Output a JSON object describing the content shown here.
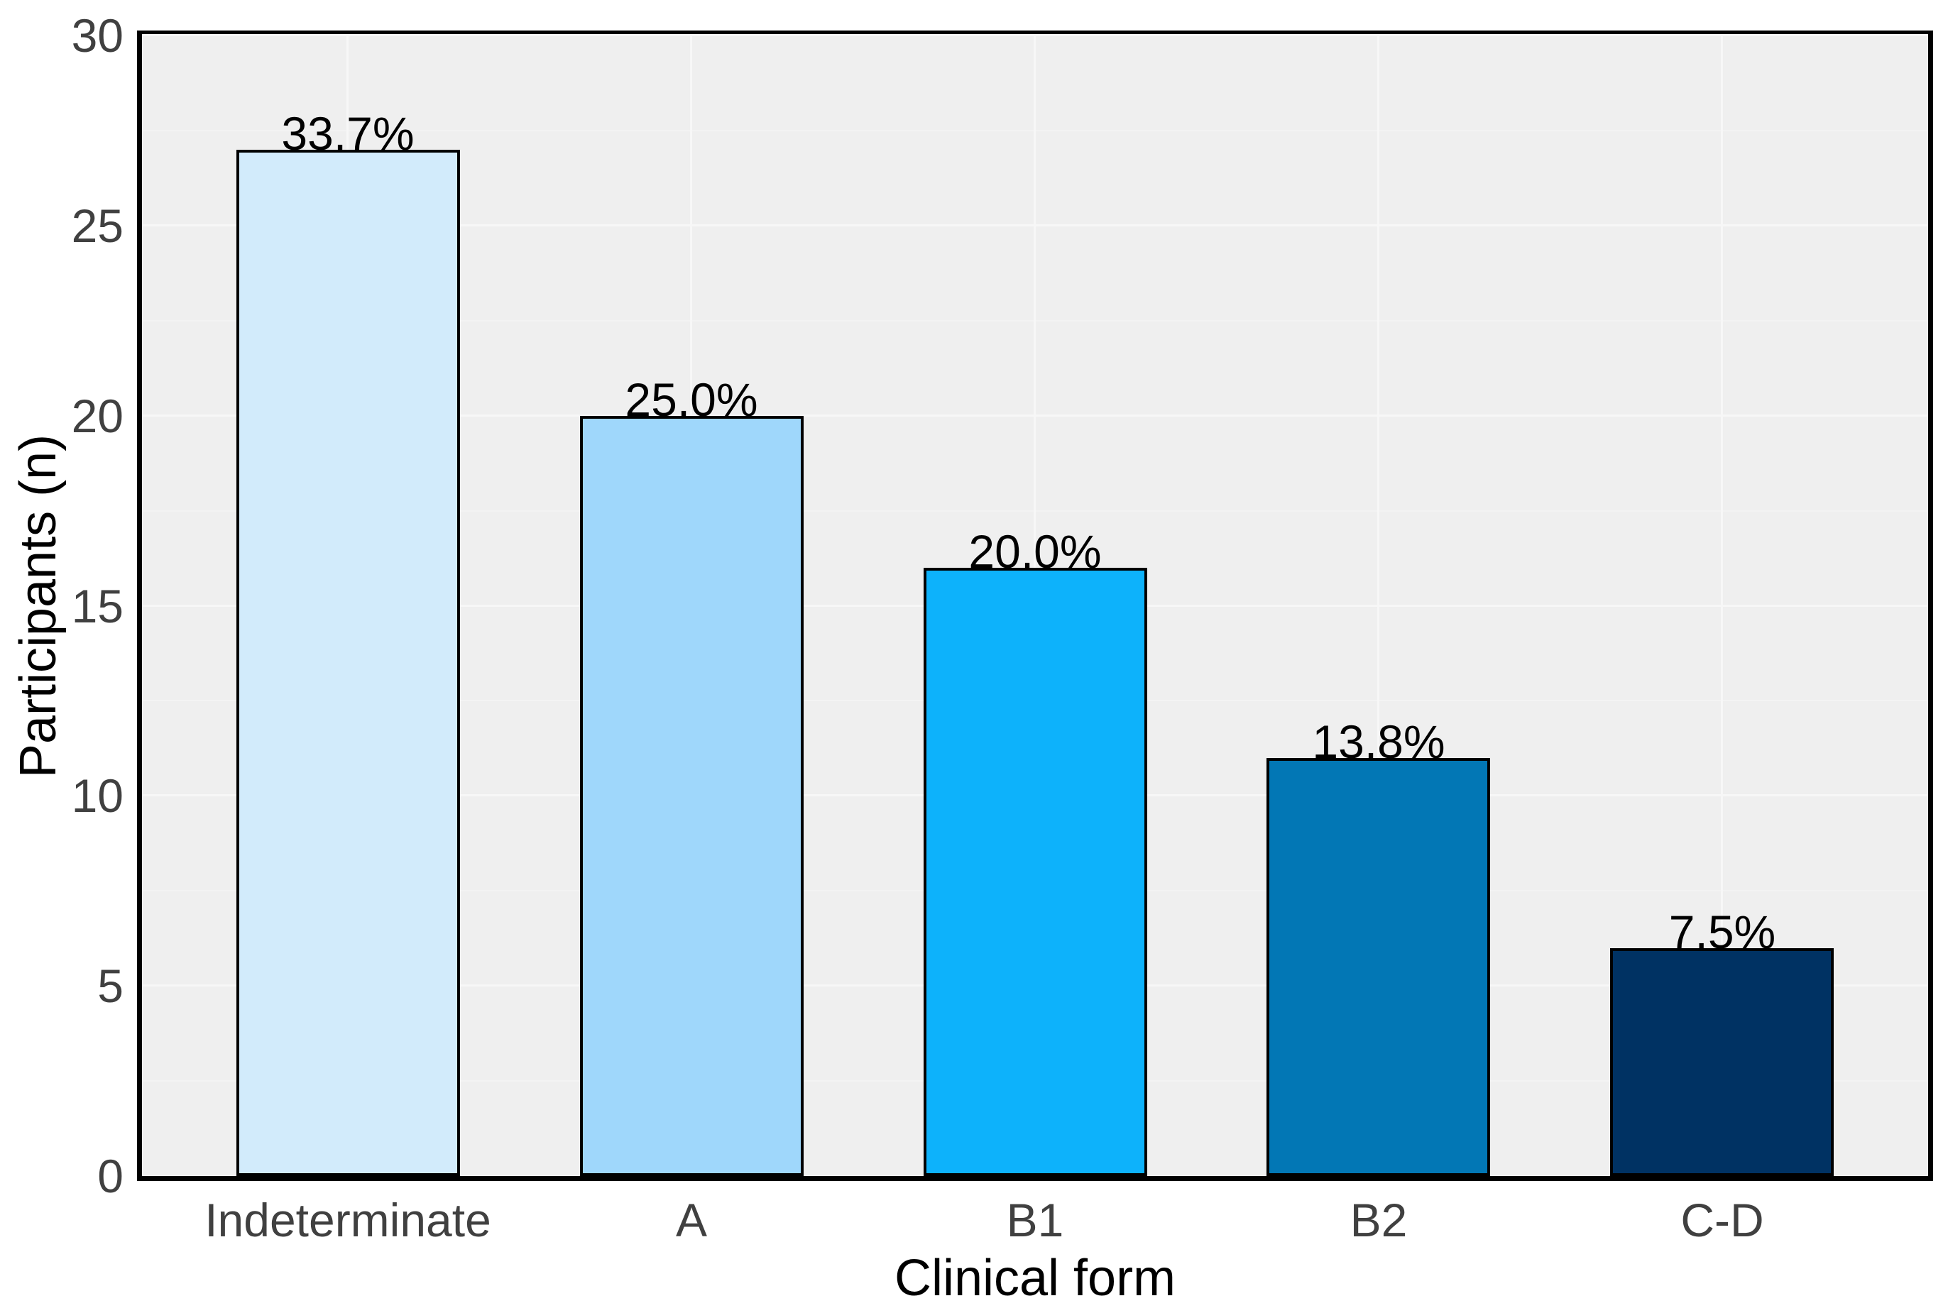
{
  "chart_data": {
    "type": "bar",
    "title": "",
    "xlabel": "Clinical form",
    "ylabel": "Participants (n)",
    "categories": [
      "Indeterminate",
      "A",
      "B1",
      "B2",
      "C-D"
    ],
    "values": [
      27,
      20,
      16,
      11,
      6
    ],
    "bar_labels": [
      "33.7%",
      "25.0%",
      "20.0%",
      "13.8%",
      "7.5%"
    ],
    "ylim": [
      0,
      30
    ],
    "yticks": [
      0,
      5,
      10,
      15,
      20,
      25,
      30
    ],
    "ytick_labels": [
      "0",
      "5",
      "10",
      "15",
      "20",
      "25",
      "30"
    ],
    "grid": {
      "horizontal_major_step": 5,
      "horizontal_minor_step": 2.5,
      "vertical_major": "at category centers",
      "visible": "faint light lines on gray panel"
    },
    "legend": "none",
    "colors": {
      "bars": [
        "#d2ebfb",
        "#9fd7fb",
        "#0db2fb",
        "#0277b5",
        "#003263"
      ],
      "bar_border": "#000000",
      "panel_background": "#efefef",
      "panel_border": "#000000",
      "grid_major": "#f7f7f7",
      "grid_minor": "#f3f3f3",
      "tick_label": "#404040",
      "axis_title": "#000000",
      "bar_label": "#000000",
      "figure_background": "#ffffff"
    }
  }
}
